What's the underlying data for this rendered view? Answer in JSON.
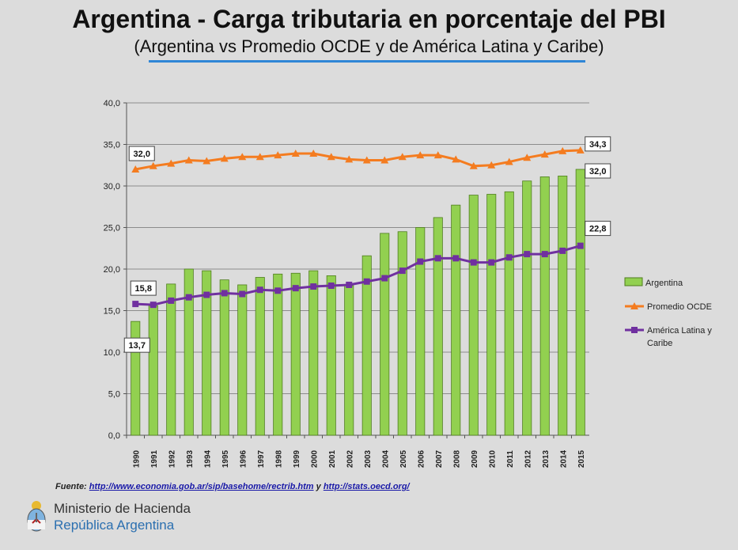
{
  "header": {
    "title": "Argentina - Carga tributaria en porcentaje del PBI",
    "subtitle": "(Argentina vs Promedio OCDE y de América Latina y Caribe)"
  },
  "chart_data": {
    "type": "bar",
    "categories": [
      "1990",
      "1991",
      "1992",
      "1993",
      "1994",
      "1995",
      "1996",
      "1997",
      "1998",
      "1999",
      "2000",
      "2001",
      "2002",
      "2003",
      "2004",
      "2005",
      "2006",
      "2007",
      "2008",
      "2009",
      "2010",
      "2011",
      "2012",
      "2013",
      "2014",
      "2015"
    ],
    "ylim": [
      0,
      40
    ],
    "yticks": [
      "0,0",
      "5,0",
      "10,0",
      "15,0",
      "20,0",
      "25,0",
      "30,0",
      "35,0",
      "40,0"
    ],
    "grid": true,
    "legend_position": "right",
    "series": [
      {
        "name": "Argentina",
        "kind": "bar",
        "color": "#92d050",
        "values": [
          13.7,
          15.6,
          18.2,
          20.0,
          19.8,
          18.7,
          18.1,
          19.0,
          19.4,
          19.5,
          19.8,
          19.2,
          18.0,
          21.6,
          24.3,
          24.5,
          25.0,
          26.2,
          27.7,
          28.9,
          29.0,
          29.3,
          30.6,
          31.1,
          31.2,
          32.0
        ]
      },
      {
        "name": "Promedio OCDE",
        "kind": "line",
        "marker": "triangle",
        "color": "#f47c20",
        "values": [
          32.0,
          32.4,
          32.7,
          33.1,
          33.0,
          33.3,
          33.5,
          33.5,
          33.7,
          33.9,
          33.9,
          33.5,
          33.2,
          33.1,
          33.1,
          33.5,
          33.7,
          33.7,
          33.2,
          32.4,
          32.5,
          32.9,
          33.4,
          33.8,
          34.2,
          34.3
        ]
      },
      {
        "name": "América Latina y Caribe",
        "kind": "line",
        "marker": "square",
        "color": "#7030a0",
        "values": [
          15.8,
          15.7,
          16.2,
          16.6,
          16.9,
          17.1,
          17.0,
          17.5,
          17.4,
          17.7,
          17.9,
          18.0,
          18.1,
          18.5,
          18.9,
          19.8,
          20.9,
          21.3,
          21.3,
          20.8,
          20.8,
          21.4,
          21.8,
          21.8,
          22.2,
          22.8
        ]
      }
    ],
    "annotations": [
      {
        "series": "Promedio OCDE",
        "category": "1990",
        "label": "32,0"
      },
      {
        "series": "Promedio OCDE",
        "category": "2015",
        "label": "34,3"
      },
      {
        "series": "Argentina",
        "category": "2015",
        "label": "32,0"
      },
      {
        "series": "América Latina y Caribe",
        "category": "1990",
        "label": "15,8"
      },
      {
        "series": "Argentina",
        "category": "1990",
        "label": "13,7"
      },
      {
        "series": "América Latina y Caribe",
        "category": "2015",
        "label": "22,8"
      }
    ],
    "legend": [
      {
        "label": "Argentina"
      },
      {
        "label": "Promedio OCDE"
      },
      {
        "label_lines": [
          "América Latina y",
          "Caribe"
        ]
      }
    ]
  },
  "footer": {
    "source_prefix": "Fuente: ",
    "source_link1": "http://www.economia.gob.ar/sip/basehome/rectrib.htm",
    "source_join": " y ",
    "source_link2": "http://stats.oecd.org/",
    "ministry_line1": "Ministerio de Hacienda",
    "ministry_line2": "República Argentina"
  }
}
